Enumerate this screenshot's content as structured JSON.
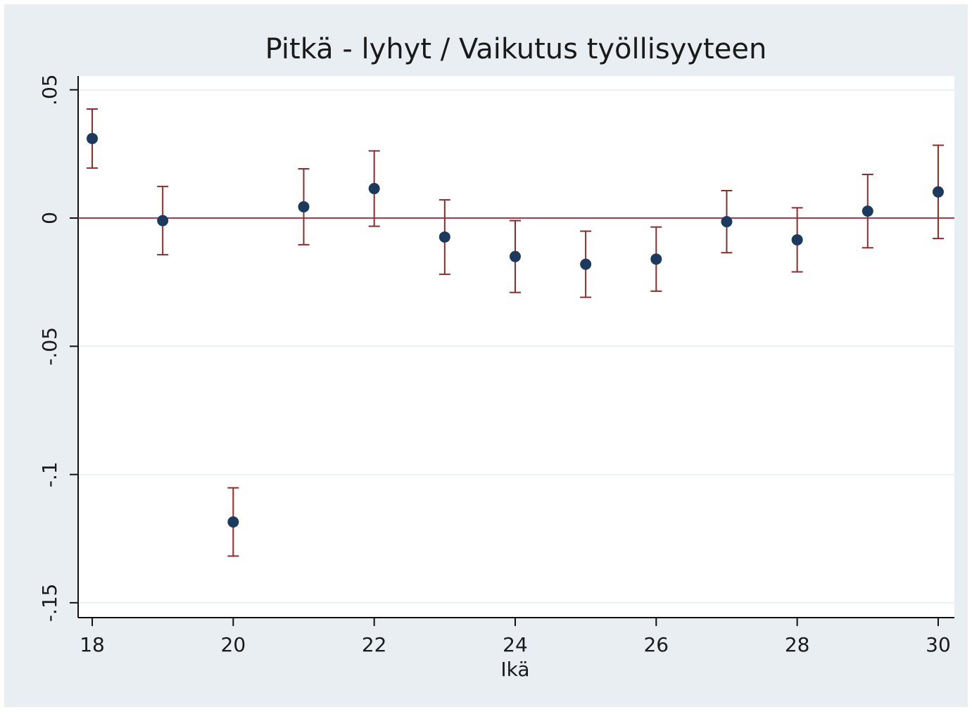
{
  "chart_data": {
    "type": "scatter",
    "title": "Pitkä - lyhyt / Vaikutus työllisyyteen",
    "x_label": "Ikä",
    "x": [
      18,
      19,
      20,
      21,
      22,
      23,
      24,
      25,
      26,
      27,
      28,
      29,
      30
    ],
    "values": [
      0.031,
      -0.001,
      -0.1185,
      0.0044,
      0.0115,
      -0.0074,
      -0.015,
      -0.018,
      -0.016,
      -0.0014,
      -0.0085,
      0.0027,
      0.0102
    ],
    "errors": [
      0.0115,
      0.0133,
      0.0133,
      0.0148,
      0.0147,
      0.0145,
      0.014,
      0.0129,
      0.0125,
      0.0121,
      0.0125,
      0.0143,
      0.0182
    ],
    "marker_color": "#1c3a5e",
    "error_color": "#8e2b2b",
    "reference_line": 0,
    "reference_color": "#c2304b",
    "xlim": [
      17.8,
      30.23
    ],
    "ylim": [
      -0.1558,
      0.0554
    ],
    "xticks": [
      18,
      20,
      22,
      24,
      26,
      28,
      30
    ],
    "yticks": [
      {
        "value": 0.05,
        "label": ".05"
      },
      0,
      {
        "value": -0.05,
        "label": "-.05"
      },
      {
        "value": -0.1,
        "label": "-.1"
      },
      {
        "value": -0.15,
        "label": "-.15"
      }
    ],
    "grid": true
  }
}
